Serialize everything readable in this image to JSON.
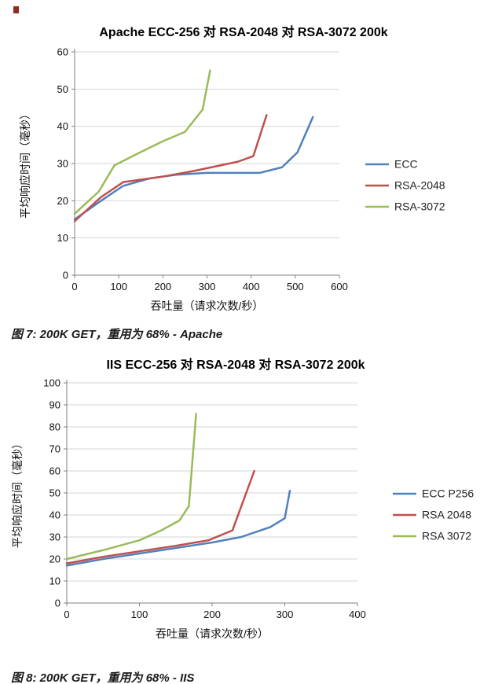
{
  "page": {
    "background": "#ffffff"
  },
  "chart_data": [
    {
      "type": "line",
      "title": "Apache ECC-256 对 RSA-2048 对 RSA-3072 200k",
      "xlabel": "吞吐量（请求次数/秒）",
      "ylabel": "平均响应时间（毫秒）",
      "xlim": [
        0,
        600
      ],
      "xticks": [
        0,
        100,
        200,
        300,
        400,
        500,
        600
      ],
      "ylim": [
        0,
        60
      ],
      "yticks": [
        0,
        10,
        20,
        30,
        40,
        50,
        60
      ],
      "grid": "horizontal",
      "legend_position": "right",
      "series": [
        {
          "name": "ECC",
          "color": "#4F81BD",
          "points": [
            [
              0,
              15
            ],
            [
              60,
              20
            ],
            [
              110,
              24
            ],
            [
              170,
              26
            ],
            [
              230,
              27
            ],
            [
              300,
              27.5
            ],
            [
              420,
              27.5
            ],
            [
              470,
              29
            ],
            [
              505,
              33
            ],
            [
              540,
              42.5
            ]
          ]
        },
        {
          "name": "RSA-2048",
          "color": "#C0504D",
          "points": [
            [
              0,
              14.5
            ],
            [
              60,
              21
            ],
            [
              110,
              25
            ],
            [
              200,
              26.5
            ],
            [
              270,
              28
            ],
            [
              330,
              29.5
            ],
            [
              370,
              30.5
            ],
            [
              405,
              32
            ],
            [
              435,
              43
            ]
          ]
        },
        {
          "name": "RSA-3072",
          "color": "#9BBB59",
          "points": [
            [
              0,
              16.5
            ],
            [
              55,
              22.5
            ],
            [
              90,
              29.5
            ],
            [
              140,
              32.5
            ],
            [
              200,
              36
            ],
            [
              250,
              38.5
            ],
            [
              290,
              44.5
            ],
            [
              307,
              55
            ]
          ]
        }
      ],
      "caption": "图 7: 200K GET，重用为 68% - Apache"
    },
    {
      "type": "line",
      "title": "IIS ECC-256 对 RSA-2048 对 RSA-3072 200k",
      "xlabel": "吞吐量（请求次数/秒）",
      "ylabel": "平均响应时间（毫秒）",
      "xlim": [
        0,
        400
      ],
      "xticks": [
        0,
        100,
        200,
        300,
        400
      ],
      "ylim": [
        0,
        100
      ],
      "yticks": [
        0,
        10,
        20,
        30,
        40,
        50,
        60,
        70,
        80,
        90,
        100
      ],
      "grid": "horizontal",
      "legend_position": "right",
      "series": [
        {
          "name": "ECC P256",
          "color": "#4F81BD",
          "points": [
            [
              0,
              17
            ],
            [
              50,
              20
            ],
            [
              100,
              22.5
            ],
            [
              150,
              25
            ],
            [
              200,
              27.5
            ],
            [
              240,
              30
            ],
            [
              280,
              34.5
            ],
            [
              300,
              38.5
            ],
            [
              307,
              51
            ]
          ]
        },
        {
          "name": "RSA 2048",
          "color": "#C0504D",
          "points": [
            [
              0,
              18
            ],
            [
              50,
              21
            ],
            [
              100,
              23.5
            ],
            [
              150,
              26
            ],
            [
              195,
              28.5
            ],
            [
              228,
              33
            ],
            [
              258,
              60
            ]
          ]
        },
        {
          "name": "RSA 3072",
          "color": "#9BBB59",
          "points": [
            [
              0,
              20
            ],
            [
              50,
              24
            ],
            [
              100,
              28.5
            ],
            [
              130,
              33
            ],
            [
              155,
              37.5
            ],
            [
              168,
              44
            ],
            [
              178,
              86
            ]
          ]
        }
      ],
      "caption": "图 8: 200K GET，重用为 68% - IIS"
    }
  ]
}
